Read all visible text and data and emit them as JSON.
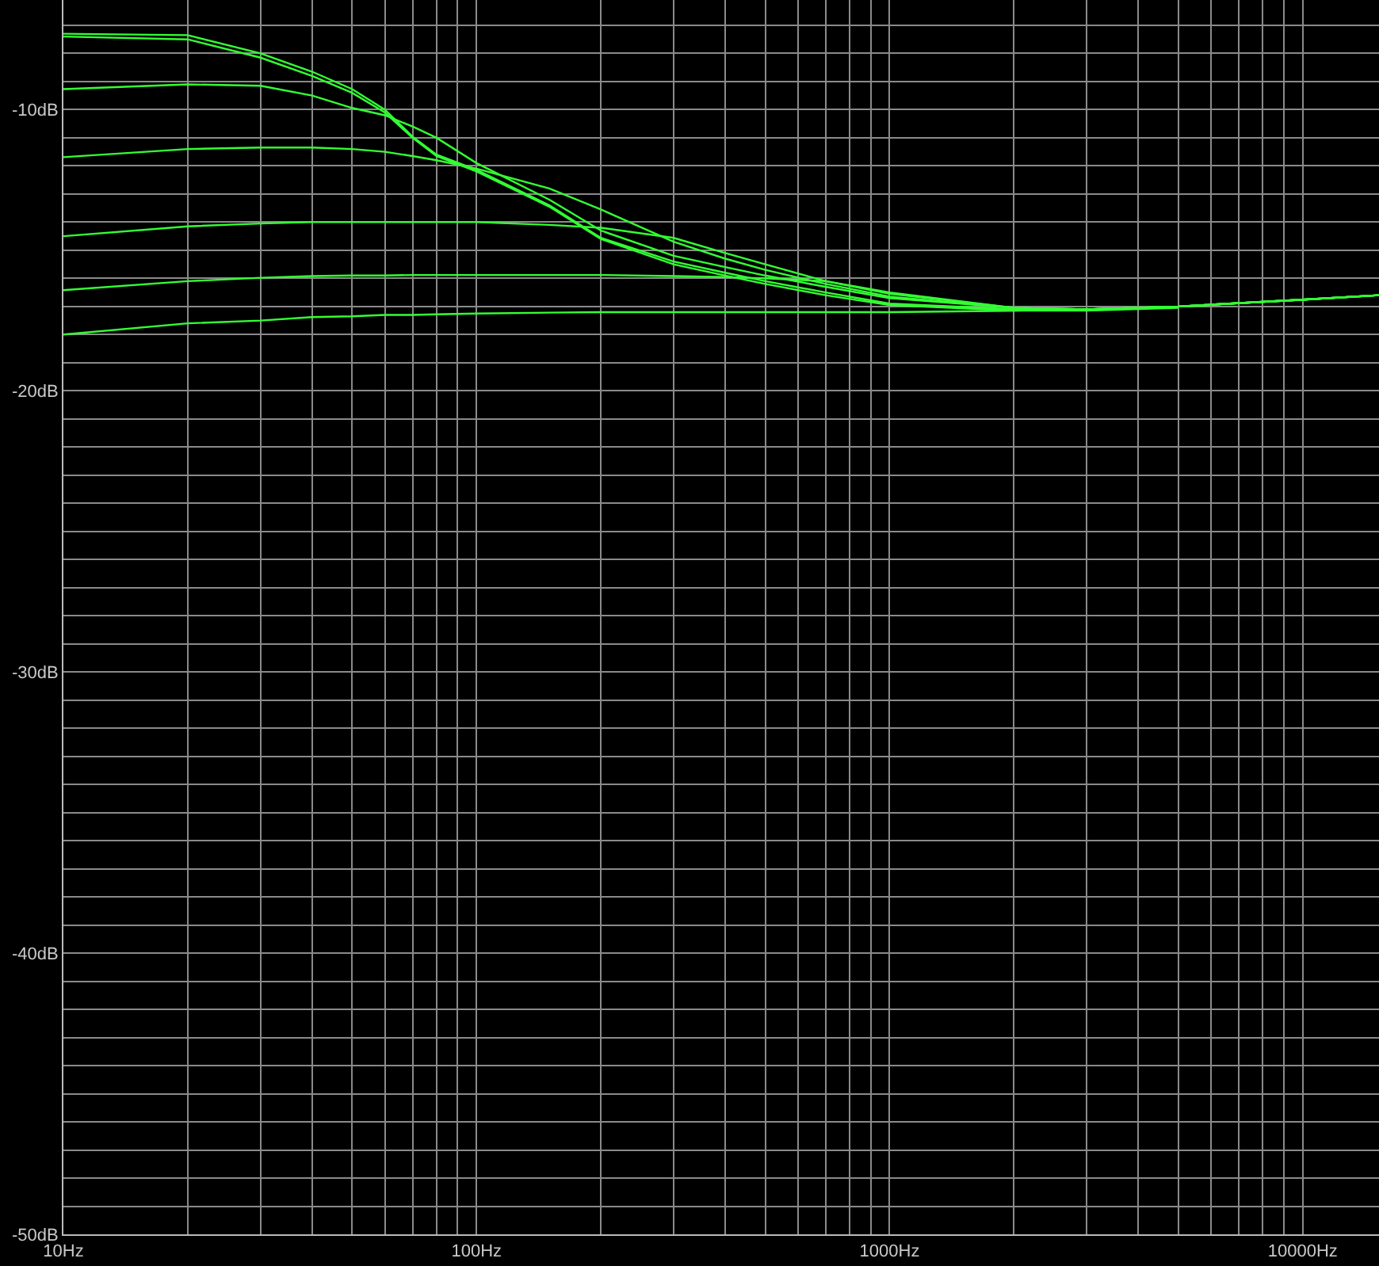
{
  "chart_data": {
    "type": "line",
    "log": "x",
    "grid": true,
    "marker": "none",
    "line_style": "solid",
    "xlim": [
      10,
      15300
    ],
    "ylim": [
      -50,
      -6.1
    ],
    "xticks": [
      {
        "value": 10,
        "label": "10Hz"
      },
      {
        "value": 20,
        "label": null
      },
      {
        "value": 30,
        "label": null
      },
      {
        "value": 40,
        "label": null
      },
      {
        "value": 50,
        "label": null
      },
      {
        "value": 60,
        "label": null
      },
      {
        "value": 70,
        "label": null
      },
      {
        "value": 80,
        "label": null
      },
      {
        "value": 90,
        "label": null
      },
      {
        "value": 100,
        "label": "100Hz"
      },
      {
        "value": 200,
        "label": null
      },
      {
        "value": 300,
        "label": null
      },
      {
        "value": 400,
        "label": null
      },
      {
        "value": 500,
        "label": null
      },
      {
        "value": 600,
        "label": null
      },
      {
        "value": 700,
        "label": null
      },
      {
        "value": 800,
        "label": null
      },
      {
        "value": 900,
        "label": null
      },
      {
        "value": 1000,
        "label": "1000Hz"
      },
      {
        "value": 2000,
        "label": null
      },
      {
        "value": 3000,
        "label": null
      },
      {
        "value": 4000,
        "label": null
      },
      {
        "value": 5000,
        "label": null
      },
      {
        "value": 6000,
        "label": null
      },
      {
        "value": 7000,
        "label": null
      },
      {
        "value": 8000,
        "label": null
      },
      {
        "value": 9000,
        "label": null
      },
      {
        "value": 10000,
        "label": "10000Hz"
      }
    ],
    "yticks": [
      {
        "value": -50,
        "label": "-50dB"
      },
      {
        "value": -49,
        "label": null
      },
      {
        "value": -48,
        "label": null
      },
      {
        "value": -47,
        "label": null
      },
      {
        "value": -46,
        "label": null
      },
      {
        "value": -45,
        "label": null
      },
      {
        "value": -44,
        "label": null
      },
      {
        "value": -43,
        "label": null
      },
      {
        "value": -42,
        "label": null
      },
      {
        "value": -41,
        "label": null
      },
      {
        "value": -40,
        "label": "-40dB"
      },
      {
        "value": -39,
        "label": null
      },
      {
        "value": -38,
        "label": null
      },
      {
        "value": -37,
        "label": null
      },
      {
        "value": -36,
        "label": null
      },
      {
        "value": -35,
        "label": null
      },
      {
        "value": -34,
        "label": null
      },
      {
        "value": -33,
        "label": null
      },
      {
        "value": -32,
        "label": null
      },
      {
        "value": -31,
        "label": null
      },
      {
        "value": -30,
        "label": "-30dB"
      },
      {
        "value": -29,
        "label": null
      },
      {
        "value": -28,
        "label": null
      },
      {
        "value": -27,
        "label": null
      },
      {
        "value": -26,
        "label": null
      },
      {
        "value": -25,
        "label": null
      },
      {
        "value": -24,
        "label": null
      },
      {
        "value": -23,
        "label": null
      },
      {
        "value": -22,
        "label": null
      },
      {
        "value": -21,
        "label": null
      },
      {
        "value": -20,
        "label": "-20dB"
      },
      {
        "value": -19,
        "label": null
      },
      {
        "value": -18,
        "label": null
      },
      {
        "value": -17,
        "label": null
      },
      {
        "value": -16,
        "label": null
      },
      {
        "value": -15,
        "label": null
      },
      {
        "value": -14,
        "label": null
      },
      {
        "value": -13,
        "label": null
      },
      {
        "value": -12,
        "label": null
      },
      {
        "value": -11,
        "label": null
      },
      {
        "value": -10,
        "label": "-10dB"
      },
      {
        "value": -9,
        "label": null
      },
      {
        "value": -8,
        "label": null
      },
      {
        "value": -7,
        "label": null
      }
    ],
    "x": [
      10,
      20,
      30,
      40,
      50,
      60,
      70,
      80,
      100,
      150,
      200,
      300,
      400,
      500,
      700,
      1000,
      2000,
      3000,
      5000,
      10000,
      15300
    ],
    "series": [
      {
        "color": "#33ff33",
        "values": [
          -7.3,
          -7.35,
          -8.0,
          -8.65,
          -9.27,
          -10.0,
          -10.96,
          -11.6,
          -12.14,
          -13.4,
          -14.56,
          -15.4,
          -15.8,
          -16.1,
          -16.5,
          -16.9,
          -17.1,
          -17.1,
          -17.0,
          -16.76,
          -16.6
        ]
      },
      {
        "color": "#33ff33",
        "x": [
          10,
          20,
          30,
          40,
          50,
          60,
          70,
          80,
          100,
          150,
          200,
          300,
          400,
          500,
          700,
          1000,
          2000,
          3000,
          5000
        ],
        "values": [
          -7.4,
          -7.5,
          -8.15,
          -8.8,
          -9.4,
          -10.1,
          -11.0,
          -11.65,
          -12.2,
          -13.45,
          -14.6,
          -15.5,
          -15.9,
          -16.2,
          -16.6,
          -16.95,
          -17.15,
          -17.15,
          -17.05
        ]
      },
      {
        "color": "#33ff33",
        "values": [
          -9.27,
          -9.1,
          -9.15,
          -9.5,
          -9.94,
          -10.2,
          -10.6,
          -11.0,
          -11.9,
          -13.2,
          -14.3,
          -15.2,
          -15.6,
          -15.9,
          -16.3,
          -16.7,
          -17.05,
          -17.1,
          -17.0,
          -16.76,
          -16.6
        ]
      },
      {
        "color": "#33ff33",
        "values": [
          -11.69,
          -11.4,
          -11.35,
          -11.35,
          -11.4,
          -11.5,
          -11.65,
          -11.8,
          -12.1,
          -12.8,
          -13.55,
          -14.7,
          -15.3,
          -15.7,
          -16.2,
          -16.65,
          -17.05,
          -17.1,
          -17.0,
          -16.76,
          -16.6
        ]
      },
      {
        "color": "#33ff33",
        "values": [
          -14.5,
          -14.15,
          -14.05,
          -14.0,
          -14.0,
          -14.0,
          -14.0,
          -14.0,
          -14.0,
          -14.1,
          -14.2,
          -14.56,
          -15.1,
          -15.5,
          -16.1,
          -16.55,
          -17.05,
          -17.1,
          -17.0,
          -16.76,
          -16.6
        ]
      },
      {
        "color": "#33ff33",
        "values": [
          -16.42,
          -16.1,
          -15.98,
          -15.92,
          -15.9,
          -15.9,
          -15.88,
          -15.88,
          -15.88,
          -15.88,
          -15.88,
          -15.92,
          -15.95,
          -16.0,
          -16.1,
          -16.5,
          -17.05,
          -17.1,
          -17.0,
          -16.76,
          -16.6
        ]
      },
      {
        "color": "#33ff33",
        "values": [
          -18.0,
          -17.6,
          -17.5,
          -17.38,
          -17.35,
          -17.3,
          -17.3,
          -17.28,
          -17.25,
          -17.22,
          -17.2,
          -17.2,
          -17.2,
          -17.2,
          -17.2,
          -17.2,
          -17.15,
          -17.1,
          -17.0,
          -16.76,
          -16.6
        ]
      }
    ]
  }
}
